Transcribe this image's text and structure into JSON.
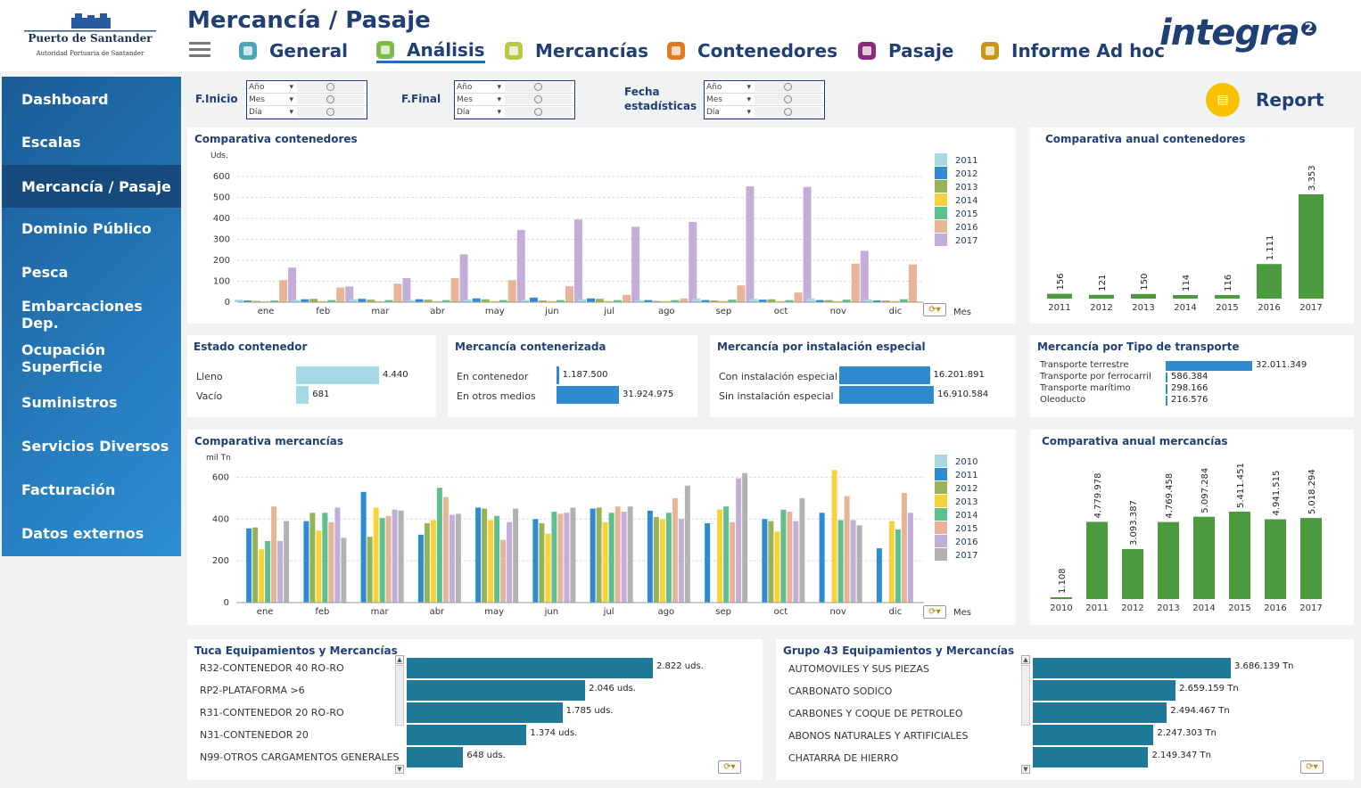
{
  "header": {
    "title": "Mercancía / Pasaje",
    "logo": {
      "line1": "Puerto de Santander",
      "line2": "Autoridad Portuaria de Santander"
    },
    "brand": "integra",
    "brand_sup": "2",
    "tabs": [
      {
        "label": "General",
        "color": "#4aa7b5"
      },
      {
        "label": "Análisis",
        "color": "#7dbb44",
        "active": true
      },
      {
        "label": "Mercancías",
        "color": "#b9c84a"
      },
      {
        "label": "Contenedores",
        "color": "#e07a1d"
      },
      {
        "label": "Pasaje",
        "color": "#8b2b7c"
      },
      {
        "label": "Informe Ad hoc",
        "color": "#c59a1a"
      }
    ]
  },
  "sidebar": {
    "items": [
      "Dashboard",
      "Escalas",
      "Mercancía / Pasaje",
      "Dominio Público",
      "Pesca",
      "Embarcaciones Dep.",
      "Ocupación Superficie",
      "Suministros",
      "Servicios Diversos",
      "Facturación",
      "Datos externos"
    ],
    "active": 2
  },
  "filters": {
    "inicio_label": "F.Inicio",
    "final_label": "F.Final",
    "fecha_label_1": "Fecha",
    "fecha_label_2": "estadísticas",
    "rows": [
      "Año",
      "Mes",
      "Día"
    ]
  },
  "report_label": "Report",
  "colors": {
    "2010": "#a6d8e6",
    "2011": "#2e8bd0",
    "2012": "#97b35a",
    "2013": "#f7d33b",
    "2014": "#5fc08f",
    "2015": "#e8b496",
    "2016": "#c3aed9",
    "2017": "#b2b2b2",
    "green": "#4b9a3e",
    "lightblue": "#a6d8e6",
    "blue": "#2e8bd0",
    "teal": "#1f7a9a"
  },
  "chart_data": [
    {
      "id": "comparativa_contenedores",
      "type": "bar",
      "title": "Comparativa contenedores",
      "ylabel": "Uds.",
      "xlabel": "Mes",
      "ylim": [
        0,
        600
      ],
      "yticks": [
        0,
        100,
        200,
        300,
        400,
        500,
        600
      ],
      "categories": [
        "ene",
        "feb",
        "mar",
        "abr",
        "may",
        "jun",
        "jul",
        "ago",
        "sep",
        "oct",
        "nov",
        "dic"
      ],
      "legend": "right",
      "series": [
        {
          "name": "2011",
          "color": "#a6d8e6",
          "values": [
            12,
            10,
            14,
            10,
            12,
            10,
            14,
            10,
            18,
            16,
            18,
            14
          ]
        },
        {
          "name": "2012",
          "color": "#2e8bd0",
          "values": [
            8,
            14,
            16,
            14,
            18,
            22,
            18,
            10,
            10,
            12,
            10,
            8
          ]
        },
        {
          "name": "2013",
          "color": "#97b35a",
          "values": [
            6,
            16,
            12,
            12,
            14,
            8,
            16,
            6,
            8,
            14,
            10,
            8
          ]
        },
        {
          "name": "2014",
          "color": "#f7d33b",
          "values": [
            4,
            6,
            6,
            6,
            6,
            6,
            6,
            6,
            6,
            6,
            6,
            6
          ]
        },
        {
          "name": "2015",
          "color": "#5fc08f",
          "values": [
            8,
            10,
            10,
            10,
            10,
            10,
            10,
            10,
            12,
            10,
            12,
            14
          ]
        },
        {
          "name": "2016",
          "color": "#e8b496",
          "values": [
            105,
            70,
            88,
            115,
            105,
            76,
            35,
            18,
            80,
            46,
            184,
            180
          ]
        },
        {
          "name": "2017",
          "color": "#c3aed9",
          "values": [
            165,
            75,
            115,
            228,
            345,
            395,
            360,
            383,
            553,
            550,
            245,
            0
          ]
        }
      ]
    },
    {
      "id": "comparativa_anual_contenedores",
      "type": "bar",
      "title": "Comparativa anual contenedores",
      "categories": [
        "2011",
        "2012",
        "2013",
        "2014",
        "2015",
        "2016",
        "2017"
      ],
      "values": [
        156,
        121,
        150,
        114,
        116,
        1111,
        3353
      ],
      "labels": [
        "156",
        "121",
        "150",
        "114",
        "116",
        "1.111",
        "3.353"
      ],
      "color": "#4b9a3e"
    },
    {
      "id": "estado_contenedor",
      "type": "bar",
      "title": "Estado contenedor",
      "categories": [
        "Lleno",
        "Vacío"
      ],
      "values": [
        4440,
        681
      ],
      "labels": [
        "4.440",
        "681"
      ],
      "color": "#a6d8e6"
    },
    {
      "id": "mercancia_contenerizada",
      "type": "bar",
      "title": "Mercancía contenerizada",
      "categories": [
        "En contenedor",
        "En otros medios"
      ],
      "values": [
        1187500,
        31924975
      ],
      "labels": [
        "1.187.500",
        "31.924.975"
      ],
      "color": "#2e8bd0"
    },
    {
      "id": "mercancia_instalacion",
      "type": "bar",
      "title": "Mercancía por instalación especial",
      "categories": [
        "Con instalación especial",
        "Sin instalación especial"
      ],
      "values": [
        16201891,
        16910584
      ],
      "labels": [
        "16.201.891",
        "16.910.584"
      ],
      "color": "#2e8bd0"
    },
    {
      "id": "mercancia_transporte",
      "type": "bar",
      "title": "Mercancía por Tipo de transporte",
      "categories": [
        "Transporte terrestre",
        "Transporte por ferrocarril",
        "Transporte marítimo",
        "Oleoducto"
      ],
      "values": [
        32011349,
        586384,
        298166,
        216576
      ],
      "labels": [
        "32.011.349",
        "586.384",
        "298.166",
        "216.576"
      ],
      "color": "#2e8bd0"
    },
    {
      "id": "comparativa_mercancias",
      "type": "bar",
      "title": "Comparativa mercancías",
      "ylabel": "mil Tn",
      "xlabel": "Mes",
      "ylim": [
        0,
        700
      ],
      "yticks": [
        0,
        200,
        400,
        600
      ],
      "categories": [
        "ene",
        "feb",
        "mar",
        "abr",
        "may",
        "jun",
        "jul",
        "ago",
        "sep",
        "oct",
        "nov",
        "dic"
      ],
      "legend": "right",
      "series": [
        {
          "name": "2010",
          "color": "#a6d8e6",
          "values": [
            null,
            null,
            null,
            null,
            null,
            null,
            null,
            null,
            null,
            null,
            null,
            null
          ]
        },
        {
          "name": "2011",
          "color": "#2e8bd0",
          "values": [
            355,
            390,
            530,
            325,
            455,
            400,
            450,
            440,
            380,
            400,
            430,
            260
          ]
        },
        {
          "name": "2012",
          "color": "#97b35a",
          "values": [
            360,
            430,
            315,
            380,
            450,
            380,
            455,
            410,
            null,
            390,
            null,
            null
          ]
        },
        {
          "name": "2013",
          "color": "#f7d33b",
          "values": [
            255,
            345,
            455,
            395,
            395,
            330,
            385,
            400,
            445,
            340,
            635,
            390
          ]
        },
        {
          "name": "2014",
          "color": "#5fc08f",
          "values": [
            295,
            430,
            405,
            550,
            415,
            435,
            430,
            430,
            460,
            445,
            395,
            350
          ]
        },
        {
          "name": "2015",
          "color": "#e8b496",
          "values": [
            460,
            385,
            415,
            505,
            300,
            425,
            460,
            500,
            385,
            435,
            510,
            525
          ]
        },
        {
          "name": "2016",
          "color": "#c3aed9",
          "values": [
            295,
            455,
            445,
            420,
            385,
            430,
            435,
            400,
            595,
            390,
            395,
            430
          ]
        },
        {
          "name": "2017",
          "color": "#b2b2b2",
          "values": [
            390,
            310,
            440,
            425,
            450,
            455,
            460,
            560,
            620,
            500,
            370,
            null
          ]
        }
      ]
    },
    {
      "id": "comparativa_anual_mercancias",
      "type": "bar",
      "title": "Comparativa anual mercancías",
      "categories": [
        "2010",
        "2011",
        "2012",
        "2013",
        "2014",
        "2015",
        "2016",
        "2017"
      ],
      "values": [
        1108,
        4779978,
        3093387,
        4769458,
        5097284,
        5411451,
        4941515,
        5018294
      ],
      "labels": [
        "1.108",
        "4.779.978",
        "3.093.387",
        "4.769.458",
        "5.097.284",
        "5.411.451",
        "4.941.515",
        "5.018.294"
      ],
      "color": "#4b9a3e"
    },
    {
      "id": "tuca",
      "type": "bar",
      "title": "Tuca Equipamientos y Mercancías",
      "categories": [
        "R32-CONTENEDOR 40 RO-RO",
        "RP2-PLATAFORMA >6",
        "R31-CONTENEDOR 20 RO-RO",
        "N31-CONTENEDOR 20",
        "N99-OTROS CARGAMENTOS GENERALES"
      ],
      "values": [
        2822,
        2046,
        1785,
        1374,
        648
      ],
      "labels": [
        "2.822 uds.",
        "2.046 uds.",
        "1.785 uds.",
        "1.374 uds.",
        "648 uds."
      ],
      "color": "#1f7a9a"
    },
    {
      "id": "grupo43",
      "type": "bar",
      "title": "Grupo 43 Equipamientos y Mercancías",
      "categories": [
        "AUTOMOVILES Y SUS PIEZAS",
        "CARBONATO SODICO",
        "CARBONES Y COQUE DE PETROLEO",
        "ABONOS NATURALES Y ARTIFICIALES",
        "CHATARRA DE HIERRO"
      ],
      "values": [
        3686139,
        2659159,
        2494467,
        2247303,
        2149347
      ],
      "labels": [
        "3.686.139 Tn",
        "2.659.159 Tn",
        "2.494.467 Tn",
        "2.247.303 Tn",
        "2.149.347 Tn"
      ],
      "color": "#1f7a9a"
    }
  ]
}
